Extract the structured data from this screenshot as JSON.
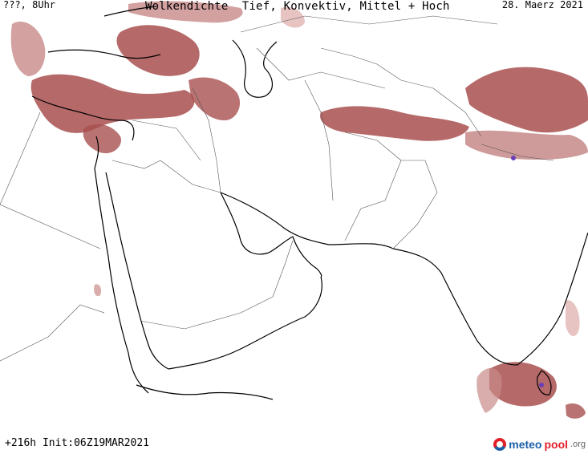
{
  "header": {
    "left_label": "???, 8Uhr",
    "title": "Wolkendichte  Tief, Konvektiv, Mittel + Hoch",
    "date": "28. Maerz 2021"
  },
  "footer": {
    "run_info": "+216h Init:06Z19MAR2021"
  },
  "brand": {
    "name_part1": "meteo",
    "name_part2": "pool",
    "suffix": ".org"
  },
  "colors": {
    "cloud_dark": "#a8504f",
    "cloud_mid": "#c78a88",
    "cloud_light": "#e3b9b7",
    "convective": "#6a3fb5",
    "coast": "#000000",
    "border": "#555555"
  }
}
